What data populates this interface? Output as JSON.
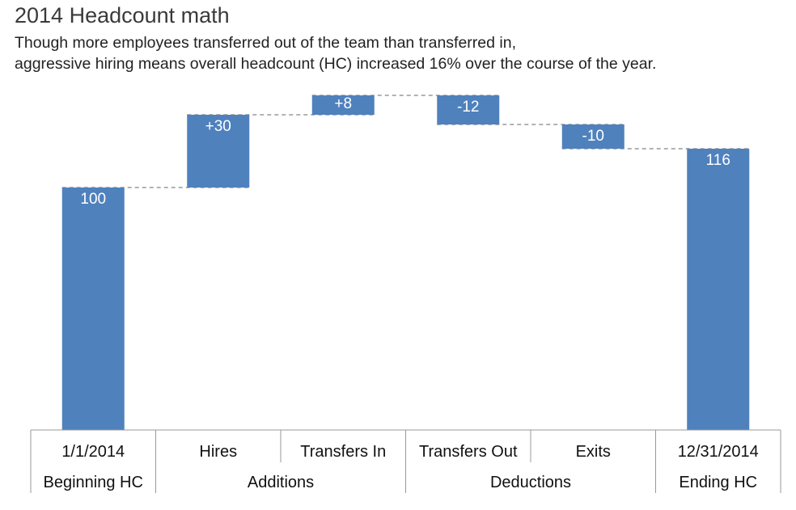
{
  "title": "2014 Headcount math",
  "subtitle_lines": [
    "Though more employees transferred out of the team than transferred in,",
    "aggressive hiring means overall headcount (HC) increased 16% over the course of the year."
  ],
  "colors": {
    "bar": "#4f81bd",
    "connector": "#999999",
    "label": "#ffffff"
  },
  "chart_data": {
    "type": "bar",
    "subtype": "waterfall",
    "categories": [
      "1/1/2014",
      "Hires",
      "Transfers In",
      "Transfers Out",
      "Exits",
      "12/31/2014"
    ],
    "values": [
      100,
      30,
      8,
      -12,
      -10,
      116
    ],
    "kinds": [
      "total",
      "delta",
      "delta",
      "delta",
      "delta",
      "total"
    ],
    "data_labels": [
      "100",
      "+30",
      "+8",
      "-12",
      "-10",
      "116"
    ],
    "groups": [
      {
        "label": "Beginning HC",
        "start": 0,
        "end": 0
      },
      {
        "label": "Additions",
        "start": 1,
        "end": 2
      },
      {
        "label": "Deductions",
        "start": 3,
        "end": 4
      },
      {
        "label": "Ending HC",
        "start": 5,
        "end": 5
      }
    ],
    "ylim": [
      0,
      138
    ],
    "grid": false,
    "legend": "none",
    "connectors": true
  }
}
